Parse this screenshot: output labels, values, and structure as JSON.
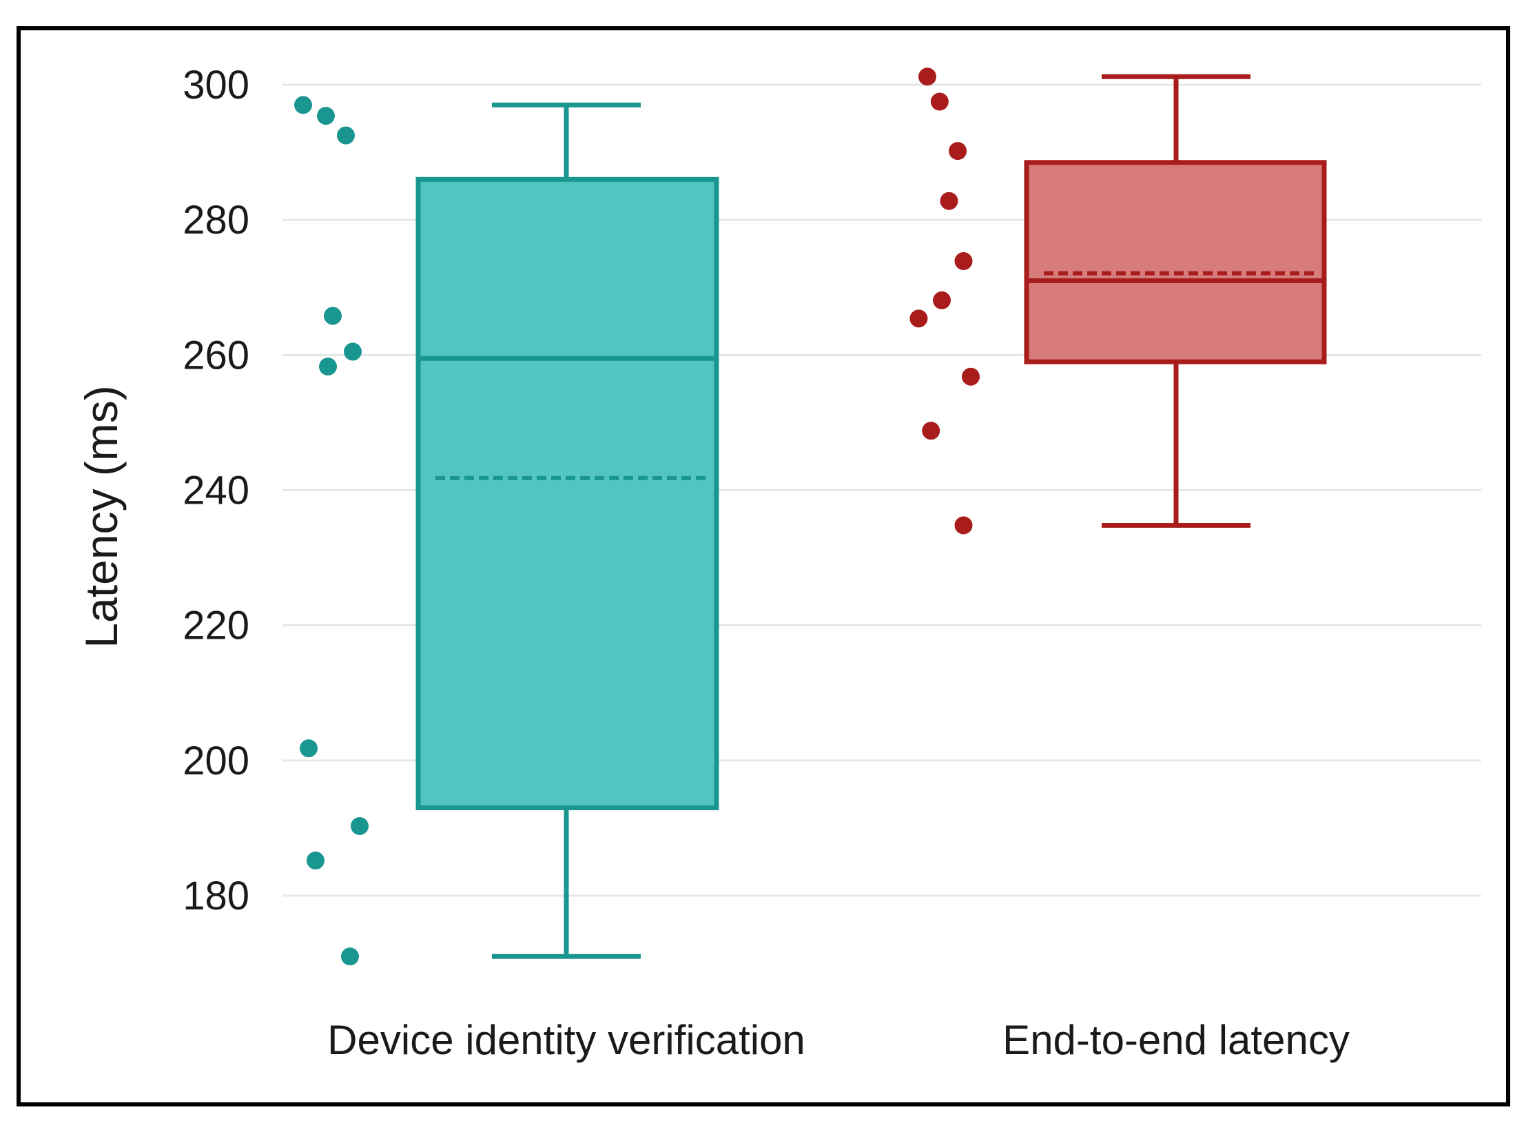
{
  "chart_data": {
    "type": "box",
    "ylabel": "Latency (ms)",
    "xlabel": "",
    "ylim": [
      170,
      302
    ],
    "yticks": [
      180,
      200,
      220,
      240,
      260,
      280,
      300
    ],
    "grid": true,
    "legend": "none",
    "categories": [
      "Device identity verification",
      "End-to-end latency"
    ],
    "series": [
      {
        "category": "Device identity verification",
        "color": "#1a9690",
        "fill": "#52c4c1",
        "whisker_low": 171,
        "q1": 193,
        "median": 259.5,
        "mean": 241.8,
        "q3": 286,
        "whisker_high": 297,
        "points": [
          297,
          295.4,
          292.5,
          265.8,
          260.5,
          258.3,
          201.8,
          190.3,
          185.2,
          171
        ]
      },
      {
        "category": "End-to-end latency",
        "color": "#a81c1c",
        "fill": "#d77b7b",
        "whisker_low": 234.8,
        "q1": 259,
        "median": 271,
        "mean": 272.1,
        "q3": 288.5,
        "whisker_high": 301.2,
        "points": [
          301.2,
          297.5,
          290.2,
          282.8,
          273.9,
          268.1,
          265.4,
          256.8,
          248.8,
          234.8
        ]
      }
    ]
  }
}
